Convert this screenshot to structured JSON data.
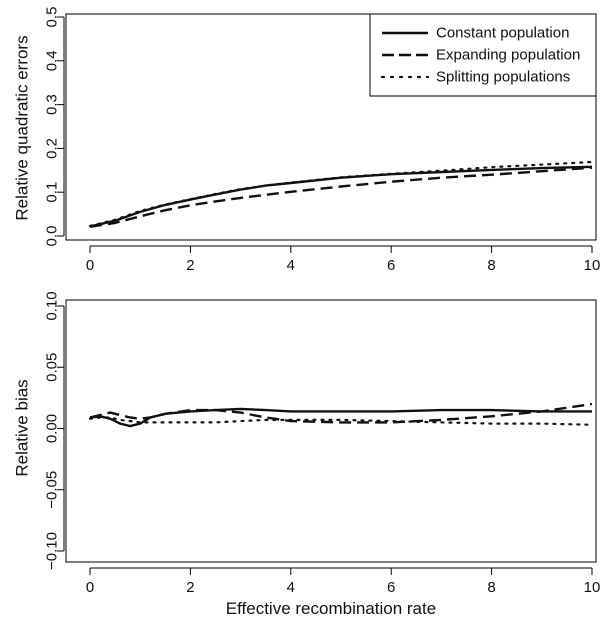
{
  "chart_data": [
    {
      "type": "line",
      "ylabel": "Relative quadratic errors",
      "xlabel": "",
      "xlim": [
        0,
        10
      ],
      "ylim": [
        0,
        0.5
      ],
      "xticks": [
        "0",
        "2",
        "4",
        "6",
        "8",
        "10"
      ],
      "yticks": [
        "0.0",
        "0.1",
        "0.2",
        "0.3",
        "0.4",
        "0.5"
      ],
      "legend_position": "top-right",
      "series": [
        {
          "name": "Constant population",
          "style": "solid",
          "x": [
            0,
            0.5,
            1,
            1.5,
            2,
            2.5,
            3,
            3.5,
            4,
            5,
            6,
            7,
            8,
            9,
            10
          ],
          "y": [
            0.022,
            0.035,
            0.055,
            0.071,
            0.083,
            0.095,
            0.106,
            0.115,
            0.121,
            0.133,
            0.141,
            0.146,
            0.151,
            0.155,
            0.158
          ]
        },
        {
          "name": "Expanding population",
          "style": "dashed",
          "x": [
            0,
            0.5,
            1,
            1.5,
            2,
            2.5,
            3,
            3.5,
            4,
            5,
            6,
            7,
            8,
            9,
            10
          ],
          "y": [
            0.021,
            0.03,
            0.045,
            0.059,
            0.07,
            0.079,
            0.087,
            0.094,
            0.101,
            0.113,
            0.124,
            0.133,
            0.14,
            0.148,
            0.156
          ]
        },
        {
          "name": "Splitting populations",
          "style": "dotted",
          "x": [
            0,
            0.5,
            1,
            1.5,
            2,
            2.5,
            3,
            3.5,
            4,
            5,
            6,
            7,
            8,
            9,
            10
          ],
          "y": [
            0.023,
            0.037,
            0.057,
            0.072,
            0.084,
            0.096,
            0.107,
            0.115,
            0.122,
            0.134,
            0.142,
            0.149,
            0.157,
            0.163,
            0.169
          ]
        }
      ]
    },
    {
      "type": "line",
      "ylabel": "Relative bias",
      "xlabel": "Effective recombination rate",
      "xlim": [
        0,
        10
      ],
      "ylim": [
        -0.1,
        0.1
      ],
      "xticks": [
        "0",
        "2",
        "4",
        "6",
        "8",
        "10"
      ],
      "yticks": [
        "−0.10",
        "−0.05",
        "0.00",
        "0.05",
        "0.10"
      ],
      "series": [
        {
          "name": "Constant population",
          "style": "solid",
          "x": [
            0,
            0.2,
            0.4,
            0.6,
            0.8,
            1.0,
            1.2,
            1.5,
            2,
            2.5,
            3,
            3.5,
            4,
            5,
            6,
            7,
            8,
            9,
            10
          ],
          "y": [
            0.009,
            0.01,
            0.008,
            0.004,
            0.002,
            0.004,
            0.009,
            0.012,
            0.014,
            0.015,
            0.016,
            0.015,
            0.014,
            0.014,
            0.014,
            0.015,
            0.015,
            0.014,
            0.014
          ]
        },
        {
          "name": "Expanding population",
          "style": "dashed",
          "x": [
            0,
            0.2,
            0.4,
            0.6,
            0.8,
            1.0,
            1.2,
            1.5,
            2,
            2.5,
            3,
            3.5,
            4,
            5,
            6,
            7,
            8,
            9,
            10
          ],
          "y": [
            0.009,
            0.011,
            0.013,
            0.011,
            0.009,
            0.008,
            0.009,
            0.012,
            0.015,
            0.015,
            0.013,
            0.009,
            0.006,
            0.005,
            0.005,
            0.007,
            0.01,
            0.014,
            0.02
          ]
        },
        {
          "name": "Splitting populations",
          "style": "dotted",
          "x": [
            0,
            0.2,
            0.4,
            0.6,
            0.8,
            1.0,
            1.2,
            1.5,
            2,
            2.5,
            3,
            3.5,
            4,
            5,
            6,
            7,
            8,
            9,
            10
          ],
          "y": [
            0.008,
            0.009,
            0.009,
            0.007,
            0.006,
            0.005,
            0.005,
            0.005,
            0.005,
            0.005,
            0.006,
            0.007,
            0.007,
            0.007,
            0.006,
            0.005,
            0.004,
            0.004,
            0.003
          ]
        }
      ]
    }
  ]
}
